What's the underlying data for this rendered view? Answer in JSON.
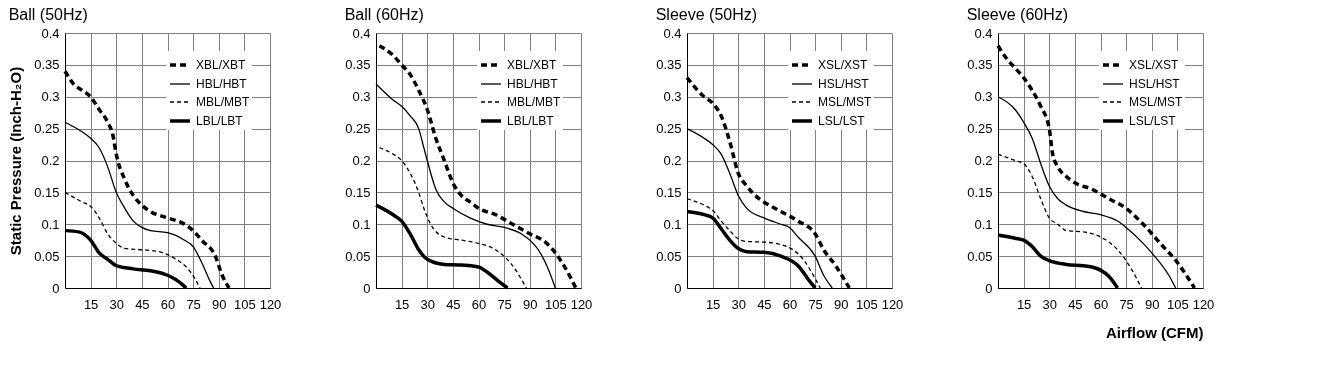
{
  "chart_data": [
    {
      "type": "line",
      "title": "Ball (50Hz)",
      "ylabel": "Static Pressure (Inch-H₂O)",
      "xlim": [
        0,
        120
      ],
      "ylim": [
        0,
        0.4
      ],
      "xticks": [
        {
          "value": 0,
          "label": null
        },
        15,
        30,
        45,
        60,
        75,
        90,
        105,
        120
      ],
      "yticks": [
        0,
        0.05,
        0.1,
        0.15,
        0.2,
        0.25,
        0.3,
        0.35,
        0.4
      ],
      "grid": true,
      "legend": "top right",
      "marker": "none",
      "series": [
        {
          "name": "XBL/XBT",
          "color": "#000000",
          "line_style": "dashed",
          "x": [
            0,
            5,
            10,
            15,
            20,
            25,
            28,
            30,
            35,
            40,
            45,
            50,
            60,
            70,
            75,
            80,
            88,
            92,
            96
          ],
          "values": [
            0.34,
            0.32,
            0.31,
            0.3,
            0.28,
            0.26,
            0.24,
            0.21,
            0.17,
            0.145,
            0.13,
            0.12,
            0.11,
            0.1,
            0.09,
            0.075,
            0.05,
            0.02,
            0
          ]
        },
        {
          "name": "HBL/HBT",
          "color": "#000000",
          "line_style": "solid",
          "x": [
            0,
            10,
            15,
            20,
            25,
            30,
            35,
            40,
            45,
            50,
            60,
            70,
            75,
            80,
            85,
            87
          ],
          "values": [
            0.26,
            0.245,
            0.235,
            0.22,
            0.19,
            0.15,
            0.125,
            0.105,
            0.095,
            0.09,
            0.087,
            0.075,
            0.065,
            0.04,
            0.01,
            0
          ]
        },
        {
          "name": "MBL/MBT",
          "color": "#000000",
          "line_style": "dashed",
          "x": [
            0,
            10,
            15,
            20,
            25,
            30,
            35,
            45,
            55,
            65,
            72,
            76,
            79
          ],
          "values": [
            0.15,
            0.135,
            0.128,
            0.11,
            0.085,
            0.07,
            0.062,
            0.06,
            0.057,
            0.045,
            0.03,
            0.015,
            0
          ]
        },
        {
          "name": "LBL/LBT",
          "color": "#000000",
          "line_style": "solid",
          "x": [
            0,
            8,
            15,
            20,
            25,
            30,
            40,
            50,
            60,
            65,
            71
          ],
          "values": [
            0.09,
            0.088,
            0.075,
            0.055,
            0.045,
            0.035,
            0.03,
            0.027,
            0.02,
            0.013,
            0
          ]
        }
      ]
    },
    {
      "type": "line",
      "title": "Ball (60Hz)",
      "xlim": [
        0,
        120
      ],
      "ylim": [
        0,
        0.4
      ],
      "xticks": [
        {
          "value": 0,
          "label": null
        },
        15,
        30,
        45,
        60,
        75,
        90,
        105,
        120
      ],
      "yticks": [
        0,
        0.05,
        0.1,
        0.15,
        0.2,
        0.25,
        0.3,
        0.35,
        0.4
      ],
      "grid": true,
      "legend": "top right",
      "marker": "none",
      "series": [
        {
          "name": "XBL/XBT",
          "color": "#000000",
          "line_style": "dashed",
          "x": [
            2,
            10,
            15,
            20,
            25,
            30,
            35,
            40,
            45,
            50,
            55,
            60,
            70,
            80,
            90,
            100,
            105,
            110,
            117
          ],
          "values": [
            0.38,
            0.365,
            0.35,
            0.335,
            0.31,
            0.28,
            0.235,
            0.2,
            0.165,
            0.145,
            0.135,
            0.125,
            0.115,
            0.1,
            0.085,
            0.07,
            0.055,
            0.035,
            0
          ]
        },
        {
          "name": "HBL/HBT",
          "color": "#000000",
          "line_style": "solid",
          "x": [
            0,
            10,
            15,
            20,
            25,
            28,
            30,
            35,
            40,
            45,
            55,
            65,
            75,
            85,
            95,
            100,
            105
          ],
          "values": [
            0.32,
            0.295,
            0.285,
            0.27,
            0.25,
            0.22,
            0.2,
            0.155,
            0.135,
            0.125,
            0.11,
            0.1,
            0.095,
            0.085,
            0.06,
            0.035,
            0
          ]
        },
        {
          "name": "MBL/MBT",
          "color": "#000000",
          "line_style": "dashed",
          "x": [
            2,
            10,
            15,
            20,
            25,
            28,
            32,
            40,
            50,
            60,
            70,
            80,
            88
          ],
          "values": [
            0.22,
            0.21,
            0.2,
            0.18,
            0.15,
            0.125,
            0.1,
            0.08,
            0.075,
            0.07,
            0.06,
            0.035,
            0
          ]
        },
        {
          "name": "LBL/LBT",
          "color": "#000000",
          "line_style": "solid",
          "x": [
            0,
            10,
            15,
            20,
            25,
            30,
            40,
            50,
            60,
            65,
            72,
            77
          ],
          "values": [
            0.13,
            0.115,
            0.105,
            0.085,
            0.06,
            0.045,
            0.037,
            0.036,
            0.033,
            0.025,
            0.01,
            0
          ]
        }
      ]
    },
    {
      "type": "line",
      "title": "Sleeve (50Hz)",
      "xlim": [
        0,
        120
      ],
      "ylim": [
        0,
        0.4
      ],
      "xticks": [
        {
          "value": 0,
          "label": null
        },
        15,
        30,
        45,
        60,
        75,
        90,
        105,
        120
      ],
      "yticks": [
        0,
        0.05,
        0.1,
        0.15,
        0.2,
        0.25,
        0.3,
        0.35,
        0.4
      ],
      "grid": true,
      "legend": "top right",
      "marker": "none",
      "series": [
        {
          "name": "XSL/XST",
          "color": "#000000",
          "line_style": "dashed",
          "x": [
            0,
            10,
            15,
            20,
            25,
            30,
            35,
            40,
            45,
            55,
            65,
            75,
            80,
            87,
            95
          ],
          "values": [
            0.33,
            0.3,
            0.29,
            0.27,
            0.23,
            0.18,
            0.16,
            0.145,
            0.135,
            0.12,
            0.105,
            0.085,
            0.06,
            0.035,
            0
          ]
        },
        {
          "name": "HSL/HST",
          "color": "#000000",
          "line_style": "solid",
          "x": [
            0,
            10,
            15,
            20,
            25,
            30,
            35,
            45,
            55,
            60,
            65,
            75,
            80,
            85
          ],
          "values": [
            0.25,
            0.235,
            0.225,
            0.21,
            0.18,
            0.145,
            0.125,
            0.11,
            0.1,
            0.095,
            0.08,
            0.05,
            0.02,
            0
          ]
        },
        {
          "name": "MSL/MST",
          "color": "#000000",
          "line_style": "dashed",
          "x": [
            0,
            10,
            15,
            20,
            25,
            30,
            35,
            45,
            55,
            62,
            68,
            75,
            78
          ],
          "values": [
            0.14,
            0.13,
            0.122,
            0.105,
            0.09,
            0.077,
            0.073,
            0.072,
            0.068,
            0.06,
            0.045,
            0.015,
            0
          ]
        },
        {
          "name": "LSL/LST",
          "color": "#000000",
          "line_style": "solid",
          "x": [
            0,
            10,
            15,
            20,
            25,
            30,
            35,
            45,
            55,
            65,
            72,
            75
          ],
          "values": [
            0.12,
            0.115,
            0.11,
            0.093,
            0.075,
            0.062,
            0.057,
            0.056,
            0.05,
            0.035,
            0.01,
            0
          ]
        }
      ]
    },
    {
      "type": "line",
      "title": "Sleeve (60Hz)",
      "xlabel": "Airflow (CFM)",
      "xlim": [
        0,
        120
      ],
      "ylim": [
        0,
        0.4
      ],
      "xticks": [
        {
          "value": 0,
          "label": null
        },
        15,
        30,
        45,
        60,
        75,
        90,
        105,
        120
      ],
      "yticks": [
        0,
        0.05,
        0.1,
        0.15,
        0.2,
        0.25,
        0.3,
        0.35,
        0.4
      ],
      "grid": true,
      "legend": "top right",
      "marker": "none",
      "series": [
        {
          "name": "XSL/XST",
          "color": "#000000",
          "line_style": "dashed",
          "x": [
            0,
            5,
            10,
            15,
            20,
            25,
            30,
            32,
            35,
            40,
            45,
            55,
            65,
            75,
            85,
            95,
            105,
            115
          ],
          "values": [
            0.38,
            0.36,
            0.345,
            0.33,
            0.31,
            0.285,
            0.25,
            0.21,
            0.19,
            0.175,
            0.165,
            0.155,
            0.14,
            0.125,
            0.1,
            0.07,
            0.04,
            0
          ]
        },
        {
          "name": "HSL/HST",
          "color": "#000000",
          "line_style": "solid",
          "x": [
            0,
            10,
            15,
            20,
            25,
            30,
            35,
            40,
            50,
            60,
            70,
            75,
            85,
            90,
            100,
            104
          ],
          "values": [
            0.3,
            0.28,
            0.26,
            0.235,
            0.195,
            0.16,
            0.14,
            0.13,
            0.12,
            0.115,
            0.105,
            0.095,
            0.07,
            0.055,
            0.02,
            0
          ]
        },
        {
          "name": "MSL/MST",
          "color": "#000000",
          "line_style": "dashed",
          "x": [
            0,
            10,
            15,
            20,
            25,
            30,
            35,
            40,
            50,
            60,
            70,
            78,
            84
          ],
          "values": [
            0.21,
            0.2,
            0.195,
            0.175,
            0.14,
            0.11,
            0.1,
            0.09,
            0.088,
            0.08,
            0.06,
            0.03,
            0
          ]
        },
        {
          "name": "LSL/LST",
          "color": "#000000",
          "line_style": "solid",
          "x": [
            0,
            10,
            15,
            20,
            25,
            30,
            40,
            50,
            55,
            60,
            65,
            70
          ],
          "values": [
            0.083,
            0.078,
            0.075,
            0.065,
            0.05,
            0.043,
            0.037,
            0.035,
            0.033,
            0.028,
            0.018,
            0
          ]
        }
      ]
    }
  ]
}
